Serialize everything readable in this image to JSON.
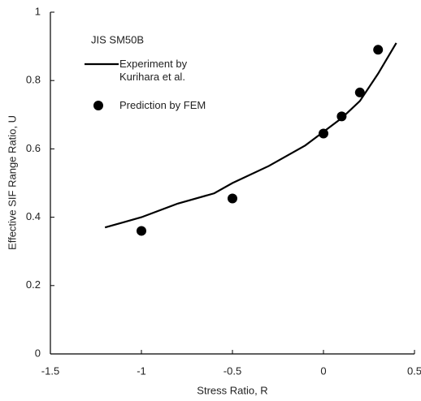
{
  "chart_data": {
    "type": "line",
    "annotation": "JIS SM50B",
    "x_label": "Stress Ratio, R",
    "y_label": "Effective SIF Range Ratio, U",
    "xlim": [
      -1.5,
      0.5
    ],
    "xticks": [
      -1.5,
      -1,
      -0.5,
      0,
      0.5
    ],
    "ylim": [
      0,
      1
    ],
    "yticks": [
      0,
      0.2,
      0.4,
      0.6,
      0.8,
      1
    ],
    "series": [
      {
        "name": "Experiment by Kurihara et al.",
        "type": "line",
        "color": "#000000",
        "x": [
          -1.2,
          -1.1,
          -1,
          -0.8,
          -0.6,
          -0.5,
          -0.3,
          -0.1,
          0,
          0.1,
          0.2,
          0.3,
          0.4
        ],
        "values": [
          0.37,
          0.385,
          0.4,
          0.44,
          0.47,
          0.5,
          0.55,
          0.61,
          0.65,
          0.69,
          0.74,
          0.82,
          0.91
        ]
      },
      {
        "name": "Prediction by FEM",
        "type": "scatter",
        "color": "#000000",
        "x": [
          -1,
          -0.5,
          0,
          0.1,
          0.2,
          0.3
        ],
        "values": [
          0.36,
          0.455,
          0.645,
          0.695,
          0.765,
          0.89
        ]
      }
    ]
  }
}
